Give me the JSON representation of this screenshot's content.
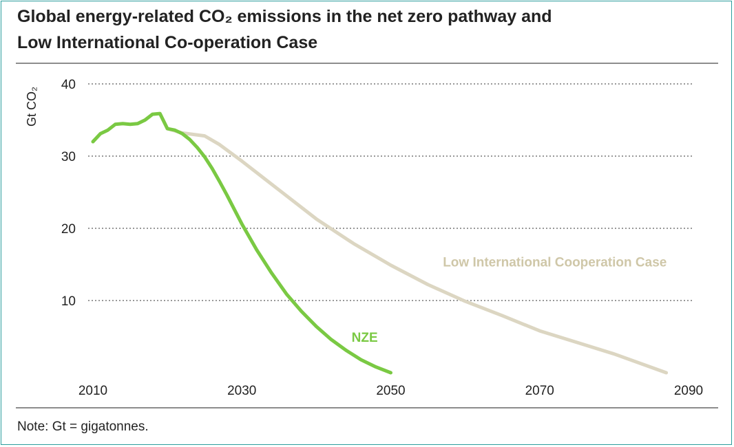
{
  "title": {
    "line1": "Global energy-related CO₂ emissions in the net zero pathway and",
    "line2": "Low International Co-operation Case"
  },
  "note": "Note: Gt = gigatonnes.",
  "chart_data": {
    "type": "line",
    "ylabel": "Gt CO₂",
    "xlabel": "",
    "xlim": [
      2010,
      2090
    ],
    "ylim": [
      0,
      40
    ],
    "x_ticks": [
      "2010",
      "2030",
      "2050",
      "2070",
      "2090"
    ],
    "y_ticks": [
      "10",
      "20",
      "30",
      "40"
    ],
    "grid": "horizontal dotted",
    "series": [
      {
        "name": "NZE",
        "color": "#7ac943",
        "x": [
          2010,
          2011,
          2012,
          2013,
          2014,
          2015,
          2016,
          2017,
          2018,
          2019,
          2020,
          2021,
          2022,
          2023,
          2024,
          2025,
          2026,
          2027,
          2028,
          2029,
          2030,
          2032,
          2034,
          2036,
          2038,
          2040,
          2042,
          2044,
          2046,
          2048,
          2050
        ],
        "values": [
          32.0,
          33.1,
          33.6,
          34.4,
          34.5,
          34.4,
          34.5,
          35.0,
          35.8,
          35.9,
          33.8,
          33.6,
          33.1,
          32.3,
          31.2,
          29.9,
          28.3,
          26.5,
          24.6,
          22.6,
          20.6,
          17.0,
          13.8,
          10.9,
          8.5,
          6.4,
          4.6,
          3.1,
          1.8,
          0.8,
          0.0
        ]
      },
      {
        "name": "Low International Cooperation Case",
        "color": "#dcd6c2",
        "x": [
          2020,
          2022,
          2025,
          2027,
          2030,
          2035,
          2040,
          2045,
          2050,
          2055,
          2060,
          2065,
          2070,
          2075,
          2080,
          2087
        ],
        "values": [
          33.8,
          33.2,
          32.8,
          31.6,
          29.3,
          25.3,
          21.3,
          17.9,
          14.9,
          12.2,
          9.9,
          7.9,
          5.8,
          4.2,
          2.6,
          0.0
        ]
      }
    ],
    "annotations": [
      {
        "text": "NZE",
        "color": "#7ac943"
      },
      {
        "text": "Low International Cooperation Case",
        "color": "#cfc7a8"
      }
    ]
  }
}
